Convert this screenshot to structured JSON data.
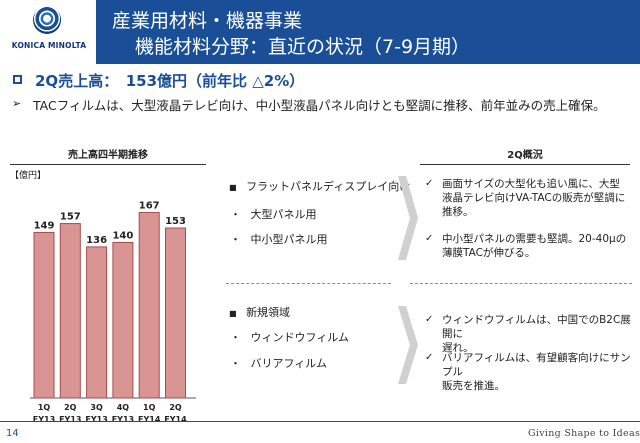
{
  "logo": {
    "text": "KONICA MINOLTA"
  },
  "header": {
    "title_line1": "産業用材料・機器事業",
    "title_line2": "機能材料分野：直近の状況（7-9月期）"
  },
  "summary": {
    "headline": "2Q売上高：　153億円（前年比 △2%）",
    "detail": "TACフィルムは、大型液晶テレビ向け、中小型液晶パネル向けとも堅調に推移、前年並みの売上確保。"
  },
  "chart_data": {
    "type": "bar",
    "title": "売上高四半期推移",
    "unit_label": "【億円】",
    "categories": [
      "1Q FY13",
      "2Q FY13",
      "3Q FY13",
      "4Q FY13",
      "1Q FY14",
      "2Q FY14"
    ],
    "tick_top": [
      "1Q",
      "2Q",
      "3Q",
      "4Q",
      "1Q",
      "2Q"
    ],
    "tick_bottom": [
      "FY13",
      "FY13",
      "FY13",
      "FY13",
      "FY14",
      "FY14"
    ],
    "values": [
      149,
      157,
      136,
      140,
      167,
      153
    ],
    "ylim": [
      0,
      180
    ],
    "bar_color": "#d99594",
    "bar_border": "#a64d4b",
    "data_labels": true
  },
  "middle": {
    "group1": {
      "heading": "フラットパネルディスプレイ向け",
      "items": [
        "大型パネル用",
        "中小型パネル用"
      ]
    },
    "group2": {
      "heading": "新規領域",
      "items": [
        "ウィンドウフィルム",
        "バリアフィルム"
      ]
    },
    "bullet": "■",
    "sub_bullet": "・"
  },
  "right": {
    "heading": "2Q概況",
    "check": "✓",
    "points1": [
      [
        "画面サイズの大型化も追い風に、大型",
        "液晶テレビ向けVA-TACの販売が堅調に",
        "推移。"
      ],
      [
        "中小型パネルの需要も堅調。20-40μの",
        "薄膜TACが伸びる。"
      ]
    ],
    "points2": [
      [
        "ウィンドウフィルムは、中国でのB2C展開に",
        "遅れ。"
      ],
      [
        "バリアフィルムは、有望顧客向けにサンプル",
        "販売を推進。"
      ]
    ]
  },
  "footer": {
    "page_number": "14",
    "tagline": "Giving Shape to Ideas"
  },
  "colors": {
    "brand": "#1a4f97",
    "bar": "#d99594"
  }
}
